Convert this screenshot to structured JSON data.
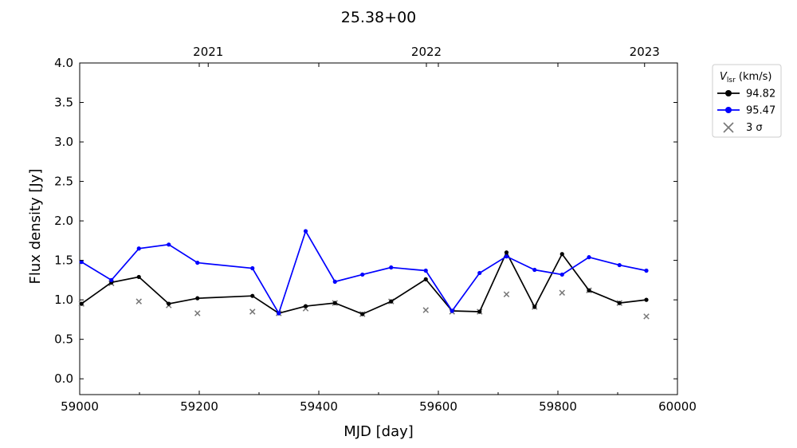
{
  "chart_data": {
    "type": "line",
    "title": "25.38+00",
    "xlabel": "MJD [day]",
    "ylabel": "Flux density [Jy]",
    "xlim": [
      59000,
      60000
    ],
    "ylim": [
      -0.2,
      4.0
    ],
    "x_ticks": [
      59000,
      59200,
      59400,
      59600,
      59800,
      60000
    ],
    "y_ticks": [
      0.0,
      0.5,
      1.0,
      1.5,
      2.0,
      2.5,
      3.0,
      3.5,
      4.0
    ],
    "top_axis_ticks": [
      {
        "label": "2021",
        "mjd": 59215
      },
      {
        "label": "2022",
        "mjd": 59580
      },
      {
        "label": "2023",
        "mjd": 59945
      }
    ],
    "grid": false,
    "legend": {
      "title": "V_lsr (km/s)",
      "title_main": "V",
      "title_sub": "lsr",
      "title_unit": " (km/s)",
      "placement": "outside-right-top",
      "sigma_label": "3 σ"
    },
    "series": [
      {
        "name": "94.82",
        "color": "#000000",
        "x": [
          59003,
          59053,
          59099,
          59149,
          59197,
          59289,
          59333,
          59378,
          59427,
          59473,
          59521,
          59579,
          59623,
          59669,
          59714,
          59761,
          59807,
          59852,
          59903,
          59948
        ],
        "y": [
          0.95,
          1.22,
          1.29,
          0.95,
          1.02,
          1.05,
          0.83,
          0.92,
          0.96,
          0.82,
          0.98,
          1.26,
          0.86,
          0.85,
          1.6,
          0.91,
          1.58,
          1.12,
          0.96,
          1.0
        ]
      },
      {
        "name": "95.47",
        "color": "#0000ff",
        "x": [
          59003,
          59053,
          59099,
          59149,
          59197,
          59289,
          59333,
          59378,
          59427,
          59473,
          59521,
          59579,
          59623,
          59669,
          59714,
          59761,
          59807,
          59852,
          59903,
          59948
        ],
        "y": [
          1.48,
          1.25,
          1.65,
          1.7,
          1.47,
          1.4,
          0.83,
          1.87,
          1.23,
          1.32,
          1.41,
          1.37,
          0.86,
          1.34,
          1.55,
          1.38,
          1.32,
          1.54,
          1.44,
          1.37
        ]
      }
    ],
    "sigma3": {
      "name": "3 σ",
      "color": "#777777",
      "x": [
        59003,
        59053,
        59099,
        59149,
        59197,
        59289,
        59333,
        59378,
        59427,
        59473,
        59521,
        59579,
        59623,
        59669,
        59714,
        59761,
        59807,
        59852,
        59903,
        59948
      ],
      "y": [
        0.95,
        1.21,
        0.98,
        0.93,
        0.83,
        0.85,
        0.83,
        0.89,
        0.96,
        0.82,
        0.98,
        0.87,
        0.85,
        0.85,
        1.07,
        0.91,
        1.09,
        1.12,
        0.96,
        0.79
      ]
    }
  }
}
